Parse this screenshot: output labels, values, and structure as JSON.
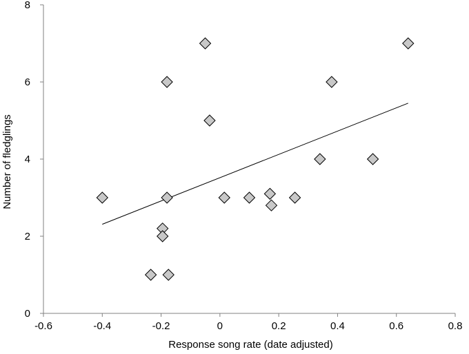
{
  "chart_data": {
    "type": "scatter",
    "xlabel": "Response song rate (date adjusted)",
    "ylabel": "Number of fledglings",
    "xlim": [
      -0.6,
      0.8
    ],
    "ylim": [
      0,
      8
    ],
    "x_ticks": [
      -0.6,
      -0.4,
      -0.2,
      0,
      0.2,
      0.4,
      0.6,
      0.8
    ],
    "y_ticks": [
      0,
      2,
      4,
      6,
      8
    ],
    "x_tick_labels": [
      "-0.6",
      "-0.4",
      "-0.2",
      "0",
      "0.2",
      "0.4",
      "0.6",
      "0.8"
    ],
    "y_tick_labels": [
      "0",
      "2",
      "4",
      "6",
      "8"
    ],
    "grid": false,
    "legend": "none",
    "marker": "diamond",
    "marker_color": "#c8c8c8",
    "points": [
      {
        "x": -0.4,
        "y": 3
      },
      {
        "x": -0.235,
        "y": 1
      },
      {
        "x": -0.195,
        "y": 2.2
      },
      {
        "x": -0.195,
        "y": 2
      },
      {
        "x": -0.18,
        "y": 6
      },
      {
        "x": -0.18,
        "y": 3
      },
      {
        "x": -0.175,
        "y": 1
      },
      {
        "x": -0.05,
        "y": 7
      },
      {
        "x": -0.035,
        "y": 5
      },
      {
        "x": 0.015,
        "y": 3
      },
      {
        "x": 0.1,
        "y": 3
      },
      {
        "x": 0.17,
        "y": 3.1
      },
      {
        "x": 0.175,
        "y": 2.8
      },
      {
        "x": 0.255,
        "y": 3
      },
      {
        "x": 0.34,
        "y": 4
      },
      {
        "x": 0.38,
        "y": 6
      },
      {
        "x": 0.52,
        "y": 4
      },
      {
        "x": 0.64,
        "y": 7
      }
    ],
    "trendline": {
      "x": [
        -0.4,
        0.64
      ],
      "y": [
        2.31,
        5.45
      ]
    }
  }
}
